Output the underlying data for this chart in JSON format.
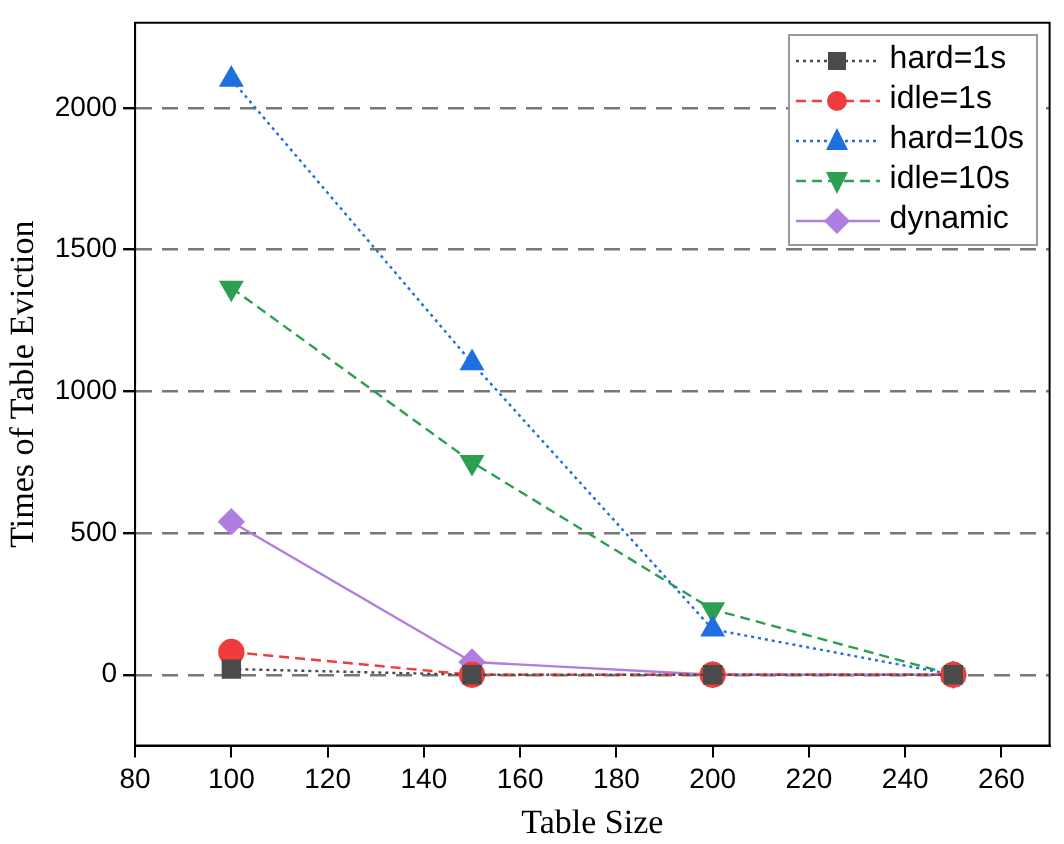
{
  "chart_data": {
    "type": "line",
    "xlabel": "Table Size",
    "ylabel": "Times of Table Eviction",
    "x": [
      100,
      150,
      200,
      250
    ],
    "xlim": [
      80,
      270
    ],
    "xticks": [
      80,
      100,
      120,
      140,
      160,
      180,
      200,
      220,
      240,
      260
    ],
    "ylim": [
      -250,
      2300
    ],
    "yticks": [
      0,
      500,
      1000,
      1500,
      2000
    ],
    "grid": "y",
    "legend": "top right",
    "series": [
      {
        "name": "hard=1s",
        "color": "#4a4a4a",
        "marker": "square",
        "line_style": "dotted",
        "values": [
          20,
          0,
          0,
          0
        ]
      },
      {
        "name": "idle=1s",
        "color": "#f03c3c",
        "marker": "circle",
        "line_style": "dashed",
        "values": [
          80,
          0,
          0,
          0
        ]
      },
      {
        "name": "hard=10s",
        "color": "#1f6fe0",
        "marker": "triangle",
        "line_style": "dotted",
        "values": [
          2100,
          1100,
          160,
          0
        ]
      },
      {
        "name": "idle=10s",
        "color": "#2aa050",
        "marker": "triangle-down",
        "line_style": "dashed",
        "values": [
          1365,
          750,
          230,
          0
        ]
      },
      {
        "name": "dynamic",
        "color": "#b07ee0",
        "marker": "diamond",
        "line_style": "solid",
        "values": [
          540,
          45,
          0,
          0
        ]
      }
    ]
  }
}
